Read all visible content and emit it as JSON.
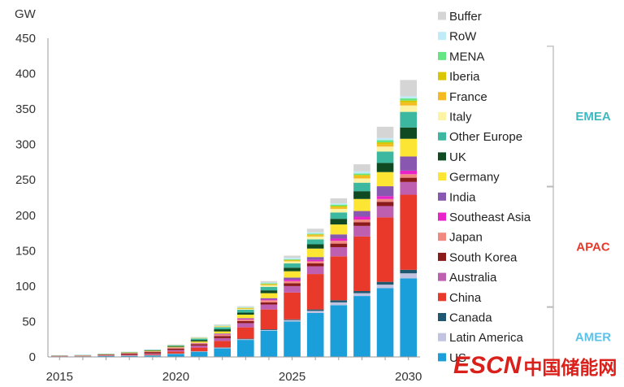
{
  "chart_data": {
    "type": "bar",
    "stacked": true,
    "ylabel": "GW",
    "ylim": [
      0,
      450
    ],
    "yticks": [
      0,
      50,
      100,
      150,
      200,
      250,
      300,
      350,
      400,
      450
    ],
    "categories": [
      2015,
      2016,
      2017,
      2018,
      2019,
      2020,
      2021,
      2022,
      2023,
      2024,
      2025,
      2026,
      2027,
      2028,
      2029,
      2030
    ],
    "xtick_labels": [
      "2015",
      "2020",
      "2025",
      "2030"
    ],
    "series": [
      {
        "name": "US",
        "color": "#1a9fdb",
        "values": [
          0.5,
          0.8,
          1.2,
          1.5,
          2,
          4,
          7,
          12,
          24,
          37,
          50,
          62,
          73,
          86,
          97,
          111
        ]
      },
      {
        "name": "Latin America",
        "color": "#c1c3e0",
        "values": [
          0.1,
          0.1,
          0.2,
          0.3,
          0.4,
          0.5,
          0.7,
          1,
          1,
          1,
          2,
          3,
          4,
          4,
          5,
          7
        ]
      },
      {
        "name": "Canada",
        "color": "#1f5870",
        "values": [
          0.1,
          0.1,
          0.1,
          0.2,
          0.2,
          0.3,
          0.4,
          0.5,
          0.7,
          1,
          1,
          2,
          3,
          3,
          4,
          5
        ]
      },
      {
        "name": "China",
        "color": "#e8392a",
        "values": [
          0.3,
          0.3,
          0.4,
          0.8,
          1.2,
          3,
          5,
          9,
          16,
          28,
          38,
          50,
          62,
          77,
          91,
          106
        ]
      },
      {
        "name": "Australia",
        "color": "#bf5fb0",
        "values": [
          0.2,
          0.2,
          0.4,
          0.6,
          1,
          2,
          3,
          4,
          6,
          7,
          9,
          11,
          13,
          15,
          16,
          18
        ]
      },
      {
        "name": "South Korea",
        "color": "#8b1a1a",
        "values": [
          0.2,
          0.3,
          0.6,
          1.5,
          2,
          2,
          2,
          3,
          3,
          3,
          4,
          4,
          5,
          5,
          6,
          6
        ]
      },
      {
        "name": "Japan",
        "color": "#f08a80",
        "values": [
          0.3,
          0.3,
          0.4,
          0.5,
          0.6,
          1,
          1,
          2,
          2,
          3,
          3,
          3,
          4,
          4,
          4,
          5
        ]
      },
      {
        "name": "Southeast Asia",
        "color": "#e922c9",
        "values": [
          0,
          0,
          0,
          0,
          0.1,
          0.2,
          0.3,
          0.5,
          1,
          1,
          2,
          2,
          3,
          4,
          4,
          5
        ]
      },
      {
        "name": "India",
        "color": "#8858b0",
        "values": [
          0,
          0,
          0,
          0.1,
          0.2,
          0.3,
          0.5,
          1,
          1,
          2,
          3,
          4,
          6,
          8,
          14,
          20
        ]
      },
      {
        "name": "Germany",
        "color": "#fde633",
        "values": [
          0.2,
          0.3,
          0.5,
          0.7,
          0.9,
          1,
          2,
          3,
          5,
          7,
          9,
          12,
          14,
          17,
          20,
          25
        ]
      },
      {
        "name": "UK",
        "color": "#0f4a22",
        "values": [
          0.1,
          0.1,
          0.2,
          0.3,
          0.6,
          1,
          2,
          3,
          3,
          4,
          5,
          6,
          8,
          11,
          13,
          16
        ]
      },
      {
        "name": "Other Europe",
        "color": "#3cb8a0",
        "values": [
          0.3,
          0.3,
          0.4,
          0.5,
          0.7,
          1,
          2,
          3,
          4,
          5,
          6,
          7,
          9,
          12,
          16,
          22
        ]
      },
      {
        "name": "Italy",
        "color": "#fdf3a5",
        "values": [
          0,
          0,
          0,
          0,
          0.1,
          0.2,
          0.4,
          1,
          1,
          2,
          3,
          4,
          5,
          6,
          7,
          9
        ]
      },
      {
        "name": "France",
        "color": "#f5ba22",
        "values": [
          0,
          0,
          0,
          0.1,
          0.1,
          0.2,
          0.4,
          0.5,
          1,
          1,
          1,
          2,
          2,
          3,
          3,
          4
        ]
      },
      {
        "name": "Iberia",
        "color": "#d9c500",
        "values": [
          0,
          0,
          0,
          0,
          0,
          0.1,
          0.2,
          0.3,
          0.5,
          1,
          1,
          1,
          2,
          2,
          3,
          3
        ]
      },
      {
        "name": "MENA",
        "color": "#66e585",
        "values": [
          0,
          0,
          0,
          0,
          0,
          0.1,
          0.2,
          0.3,
          0.5,
          1,
          1,
          1,
          2,
          2,
          3,
          3
        ]
      },
      {
        "name": "RoW",
        "color": "#c0ecfa",
        "values": [
          0.3,
          0.3,
          0.3,
          0.3,
          0.4,
          0.5,
          0.6,
          1,
          1,
          1,
          2,
          2,
          2,
          3,
          3,
          3
        ]
      },
      {
        "name": "Buffer",
        "color": "#d5d5d5",
        "values": [
          0,
          0,
          0,
          0,
          0.2,
          0.3,
          0.5,
          1,
          1,
          2,
          3,
          5,
          7,
          10,
          16,
          23
        ]
      }
    ],
    "legend_order": [
      "Buffer",
      "RoW",
      "MENA",
      "Iberia",
      "France",
      "Italy",
      "Other Europe",
      "UK",
      "Germany",
      "India",
      "Southeast Asia",
      "Japan",
      "South Korea",
      "Australia",
      "China",
      "Canada",
      "Latin America",
      "US"
    ],
    "region_groups": [
      {
        "label": "EMEA",
        "color": "#3cb8c0",
        "members": [
          "MENA",
          "Iberia",
          "France",
          "Italy",
          "Other Europe",
          "UK",
          "Germany"
        ]
      },
      {
        "label": "APAC",
        "color": "#e8392a",
        "members": [
          "India",
          "Southeast Asia",
          "Japan",
          "South Korea",
          "Australia",
          "China"
        ]
      },
      {
        "label": "AMER",
        "color": "#5bc2e8",
        "members": [
          "Canada",
          "Latin America",
          "US"
        ]
      }
    ]
  },
  "watermark": {
    "latin": "ESCN",
    "cjk": "中国储能网"
  }
}
